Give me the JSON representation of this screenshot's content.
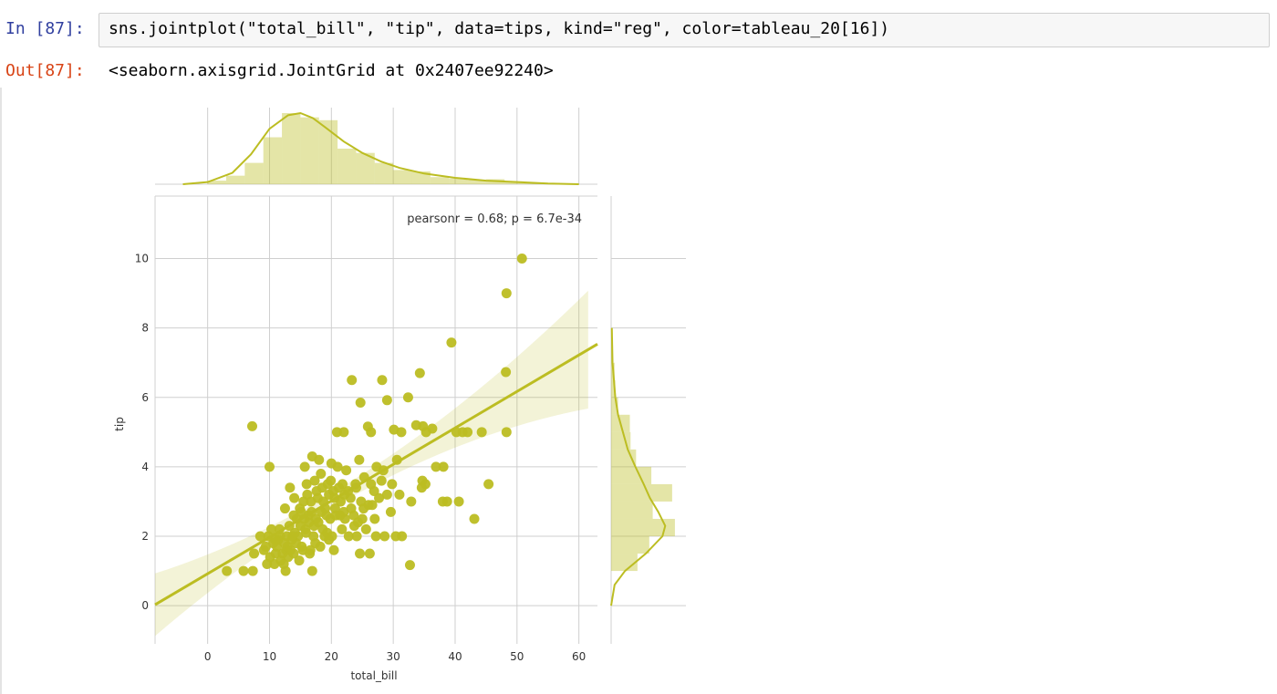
{
  "cell": {
    "in_prompt": "In [87]:",
    "code": "sns.jointplot(\"total_bill\", \"tip\", data=tips, kind=\"reg\", color=tableau_20[16])",
    "out_prompt": "Out[87]:",
    "output_text": "<seaborn.axisgrid.JointGrid at 0x2407ee92240>"
  },
  "chart_data": {
    "type": "scatter",
    "subtype": "jointplot-reg",
    "xlabel": "total_bill",
    "ylabel": "tip",
    "xlim": [
      -8.5,
      63
    ],
    "ylim": [
      -1.1,
      11.8
    ],
    "x_ticks": [
      0,
      10,
      20,
      30,
      40,
      50,
      60
    ],
    "y_ticks": [
      0,
      2,
      4,
      6,
      8,
      10
    ],
    "annotation": "pearsonr = 0.68; p = 6.7e-34",
    "color": "#bcbd22",
    "grid": true,
    "regression": {
      "slope": 0.105,
      "intercept": 0.92,
      "x_range": [
        -8.5,
        63
      ]
    },
    "points": [
      [
        50.8,
        10.0
      ],
      [
        48.3,
        9.0
      ],
      [
        39.4,
        7.58
      ],
      [
        48.2,
        6.73
      ],
      [
        34.3,
        6.7
      ],
      [
        28.2,
        6.5
      ],
      [
        23.3,
        6.5
      ],
      [
        32.4,
        6.0
      ],
      [
        29.0,
        5.92
      ],
      [
        24.7,
        5.85
      ],
      [
        48.3,
        5.0
      ],
      [
        41.2,
        5.0
      ],
      [
        40.2,
        5.0
      ],
      [
        35.3,
        5.0
      ],
      [
        31.3,
        5.0
      ],
      [
        30.1,
        5.07
      ],
      [
        25.9,
        5.16
      ],
      [
        22.0,
        5.0
      ],
      [
        20.9,
        5.0
      ],
      [
        26.4,
        5.0
      ],
      [
        34.8,
        5.17
      ],
      [
        7.2,
        5.17
      ],
      [
        33.7,
        5.2
      ],
      [
        16.9,
        4.3
      ],
      [
        18.0,
        4.2
      ],
      [
        20.0,
        4.1
      ],
      [
        24.5,
        4.2
      ],
      [
        27.3,
        4.0
      ],
      [
        36.9,
        4.0
      ],
      [
        10.0,
        4.0
      ],
      [
        15.7,
        4.0
      ],
      [
        18.3,
        3.8
      ],
      [
        21.0,
        4.0
      ],
      [
        22.4,
        3.9
      ],
      [
        25.3,
        3.7
      ],
      [
        28.1,
        3.6
      ],
      [
        29.8,
        3.5
      ],
      [
        34.7,
        3.6
      ],
      [
        38.1,
        4.0
      ],
      [
        45.4,
        3.5
      ],
      [
        34.6,
        3.4
      ],
      [
        16.0,
        3.5
      ],
      [
        13.3,
        3.4
      ],
      [
        17.3,
        3.6
      ],
      [
        19.4,
        3.5
      ],
      [
        24.0,
        3.4
      ],
      [
        26.9,
        3.3
      ],
      [
        29.0,
        3.2
      ],
      [
        31.0,
        3.2
      ],
      [
        20.3,
        3.3
      ],
      [
        22.7,
        3.3
      ],
      [
        14.0,
        3.1
      ],
      [
        15.5,
        3.0
      ],
      [
        16.7,
        3.0
      ],
      [
        17.8,
        3.1
      ],
      [
        18.7,
        3.0
      ],
      [
        19.6,
        3.2
      ],
      [
        21.5,
        3.0
      ],
      [
        23.1,
        3.1
      ],
      [
        24.8,
        3.0
      ],
      [
        26.0,
        2.9
      ],
      [
        27.7,
        3.1
      ],
      [
        32.9,
        3.0
      ],
      [
        38.7,
        3.0
      ],
      [
        38.0,
        3.0
      ],
      [
        40.6,
        3.0
      ],
      [
        12.5,
        2.8
      ],
      [
        13.9,
        2.6
      ],
      [
        15.1,
        2.7
      ],
      [
        16.3,
        2.6
      ],
      [
        17.5,
        2.5
      ],
      [
        18.4,
        2.7
      ],
      [
        19.8,
        2.5
      ],
      [
        20.7,
        2.6
      ],
      [
        22.2,
        2.5
      ],
      [
        23.7,
        2.3
      ],
      [
        25.6,
        2.2
      ],
      [
        27.2,
        2.0
      ],
      [
        28.6,
        2.0
      ],
      [
        31.4,
        2.0
      ],
      [
        43.1,
        2.5
      ],
      [
        10.3,
        2.2
      ],
      [
        11.6,
        2.2
      ],
      [
        12.8,
        2.0
      ],
      [
        14.6,
        2.0
      ],
      [
        15.9,
        2.1
      ],
      [
        17.1,
        2.0
      ],
      [
        18.9,
        2.0
      ],
      [
        20.1,
        2.0
      ],
      [
        22.8,
        2.0
      ],
      [
        24.1,
        2.0
      ],
      [
        30.4,
        2.0
      ],
      [
        8.5,
        2.0
      ],
      [
        9.8,
        2.0
      ],
      [
        10.6,
        1.8
      ],
      [
        11.2,
        1.7
      ],
      [
        12.1,
        1.5
      ],
      [
        12.7,
        1.6
      ],
      [
        13.4,
        1.6
      ],
      [
        14.3,
        1.8
      ],
      [
        15.4,
        1.6
      ],
      [
        16.5,
        1.5
      ],
      [
        18.2,
        1.7
      ],
      [
        20.4,
        1.6
      ],
      [
        24.6,
        1.5
      ],
      [
        26.2,
        1.5
      ],
      [
        7.5,
        1.5
      ],
      [
        9.1,
        1.6
      ],
      [
        10.1,
        1.4
      ],
      [
        11.0,
        1.5
      ],
      [
        11.8,
        1.3
      ],
      [
        13.0,
        1.4
      ],
      [
        13.9,
        1.5
      ],
      [
        14.8,
        1.3
      ],
      [
        16.6,
        1.6
      ],
      [
        9.6,
        1.2
      ],
      [
        10.8,
        1.2
      ],
      [
        12.3,
        1.2
      ],
      [
        32.7,
        1.17
      ],
      [
        3.1,
        1.0
      ],
      [
        5.8,
        1.0
      ],
      [
        7.3,
        1.0
      ],
      [
        12.6,
        1.0
      ],
      [
        16.9,
        1.0
      ],
      [
        11.4,
        1.9
      ],
      [
        12.9,
        1.7
      ],
      [
        13.6,
        1.9
      ],
      [
        14.1,
        2.1
      ],
      [
        15.0,
        2.3
      ],
      [
        15.8,
        2.2
      ],
      [
        16.4,
        2.4
      ],
      [
        17.2,
        2.3
      ],
      [
        17.9,
        2.4
      ],
      [
        18.6,
        2.2
      ],
      [
        19.2,
        2.6
      ],
      [
        20.6,
        2.8
      ],
      [
        21.4,
        2.6
      ],
      [
        22.0,
        2.7
      ],
      [
        23.2,
        2.8
      ],
      [
        25.0,
        2.5
      ],
      [
        26.6,
        2.9
      ],
      [
        14.9,
        2.8
      ],
      [
        16.1,
        3.2
      ],
      [
        17.6,
        3.3
      ],
      [
        18.5,
        3.4
      ],
      [
        19.9,
        3.6
      ],
      [
        21.8,
        3.5
      ],
      [
        23.9,
        3.5
      ],
      [
        26.4,
        3.5
      ],
      [
        28.4,
        3.9
      ],
      [
        30.6,
        4.2
      ],
      [
        20.5,
        3.1
      ],
      [
        21.2,
        3.4
      ],
      [
        22.1,
        3.2
      ],
      [
        23.6,
        2.6
      ],
      [
        25.2,
        2.8
      ],
      [
        27.0,
        2.5
      ],
      [
        11.7,
        2.0
      ],
      [
        13.2,
        2.3
      ],
      [
        14.4,
        2.5
      ],
      [
        15.6,
        2.5
      ],
      [
        16.8,
        2.7
      ],
      [
        19.0,
        2.8
      ],
      [
        19.6,
        1.9
      ],
      [
        12.4,
        1.8
      ],
      [
        13.7,
        2.0
      ],
      [
        10.9,
        1.9
      ],
      [
        9.4,
        1.7
      ],
      [
        15.2,
        1.7
      ],
      [
        17.4,
        1.8
      ],
      [
        19.3,
        2.1
      ],
      [
        21.7,
        2.2
      ],
      [
        24.3,
        2.4
      ],
      [
        29.6,
        2.7
      ],
      [
        35.2,
        3.5
      ],
      [
        44.3,
        5.0
      ],
      [
        42.0,
        5.0
      ],
      [
        36.3,
        5.1
      ]
    ],
    "top_marginal": {
      "bins": [
        [
          0,
          3,
          0.05
        ],
        [
          3,
          6,
          0.12
        ],
        [
          6,
          9,
          0.3
        ],
        [
          9,
          12,
          0.66
        ],
        [
          12,
          15,
          1.0
        ],
        [
          15,
          18,
          0.94
        ],
        [
          18,
          21,
          0.9
        ],
        [
          21,
          24,
          0.5
        ],
        [
          24,
          27,
          0.44
        ],
        [
          27,
          30,
          0.3
        ],
        [
          30,
          33,
          0.2
        ],
        [
          33,
          36,
          0.18
        ],
        [
          36,
          39,
          0.1
        ],
        [
          39,
          42,
          0.08
        ],
        [
          42,
          45,
          0.06
        ],
        [
          45,
          48,
          0.07
        ],
        [
          48,
          51,
          0.04
        ],
        [
          51,
          54,
          0.02
        ]
      ],
      "kde": [
        [
          -4,
          0.0
        ],
        [
          0,
          0.03
        ],
        [
          4,
          0.16
        ],
        [
          7,
          0.42
        ],
        [
          10,
          0.78
        ],
        [
          13,
          0.97
        ],
        [
          15,
          1.0
        ],
        [
          17,
          0.93
        ],
        [
          19,
          0.8
        ],
        [
          22,
          0.6
        ],
        [
          25,
          0.44
        ],
        [
          28,
          0.32
        ],
        [
          31,
          0.23
        ],
        [
          35,
          0.15
        ],
        [
          40,
          0.09
        ],
        [
          45,
          0.05
        ],
        [
          50,
          0.03
        ],
        [
          55,
          0.01
        ],
        [
          60,
          0.0
        ]
      ]
    },
    "right_marginal": {
      "bins": [
        [
          1.0,
          1.5,
          0.38
        ],
        [
          1.5,
          2.0,
          0.55
        ],
        [
          2.0,
          2.5,
          0.92
        ],
        [
          2.5,
          3.0,
          0.6
        ],
        [
          3.0,
          3.5,
          0.88
        ],
        [
          3.5,
          4.0,
          0.58
        ],
        [
          4.0,
          4.5,
          0.36
        ],
        [
          4.5,
          5.0,
          0.28
        ],
        [
          5.0,
          5.5,
          0.27
        ],
        [
          5.5,
          6.0,
          0.1
        ],
        [
          6.0,
          6.5,
          0.06
        ],
        [
          6.5,
          7.0,
          0.05
        ],
        [
          7.0,
          8.0,
          0.02
        ]
      ],
      "kde": [
        [
          0.0,
          0.0
        ],
        [
          0.6,
          0.05
        ],
        [
          1.0,
          0.2
        ],
        [
          1.5,
          0.5
        ],
        [
          2.0,
          0.74
        ],
        [
          2.3,
          0.78
        ],
        [
          2.7,
          0.68
        ],
        [
          3.1,
          0.56
        ],
        [
          3.5,
          0.47
        ],
        [
          4.0,
          0.35
        ],
        [
          4.5,
          0.24
        ],
        [
          5.0,
          0.17
        ],
        [
          5.5,
          0.1
        ],
        [
          6.0,
          0.06
        ],
        [
          6.5,
          0.04
        ],
        [
          7.0,
          0.02
        ],
        [
          8.0,
          0.01
        ]
      ]
    }
  }
}
